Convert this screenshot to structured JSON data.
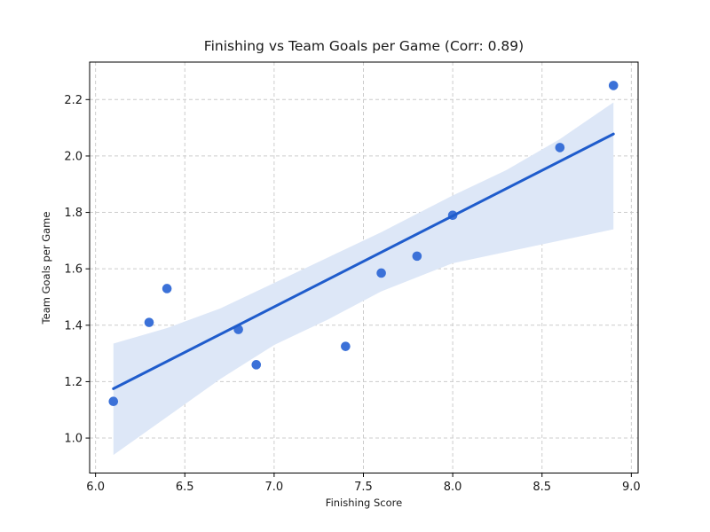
{
  "figure": {
    "background": "#ffffff"
  },
  "chart_data": {
    "type": "scatter",
    "title": "Finishing vs Team Goals per Game (Corr: 0.89)",
    "xlabel": "Finishing Score",
    "ylabel": "Team Goals per Game",
    "correlation": 0.89,
    "xlim": [
      5.967,
      9.038
    ],
    "ylim": [
      0.876,
      2.333
    ],
    "x_ticks": [
      6.0,
      6.5,
      7.0,
      7.5,
      8.0,
      8.5,
      9.0
    ],
    "y_ticks": [
      1.0,
      1.2,
      1.4,
      1.6,
      1.8,
      2.0,
      2.2
    ],
    "grid": true,
    "legend": "none",
    "points": [
      [
        6.1,
        1.13
      ],
      [
        6.3,
        1.41
      ],
      [
        6.4,
        1.53
      ],
      [
        6.8,
        1.385
      ],
      [
        6.9,
        1.26
      ],
      [
        7.4,
        1.325
      ],
      [
        7.6,
        1.585
      ],
      [
        7.8,
        1.645
      ],
      [
        8.0,
        1.79
      ],
      [
        8.6,
        2.03
      ],
      [
        8.9,
        2.25
      ]
    ],
    "regression_line": {
      "x": [
        6.1,
        8.9
      ],
      "y": [
        1.175,
        2.078
      ]
    },
    "ci_band": {
      "x": [
        6.1,
        6.4,
        6.7,
        7.0,
        7.3,
        7.6,
        8.0,
        8.3,
        8.6,
        8.9
      ],
      "upper": [
        1.335,
        1.39,
        1.46,
        1.55,
        1.64,
        1.73,
        1.86,
        1.95,
        2.06,
        2.19
      ],
      "lower": [
        0.94,
        1.075,
        1.21,
        1.33,
        1.42,
        1.52,
        1.62,
        1.66,
        1.7,
        1.74
      ]
    },
    "colors": {
      "point": "#3b71d8",
      "line": "#1f5ccc",
      "band": "#dde7f7",
      "grid": "#cccccc",
      "spine": "#000000",
      "text": "#1a1a1a"
    }
  }
}
